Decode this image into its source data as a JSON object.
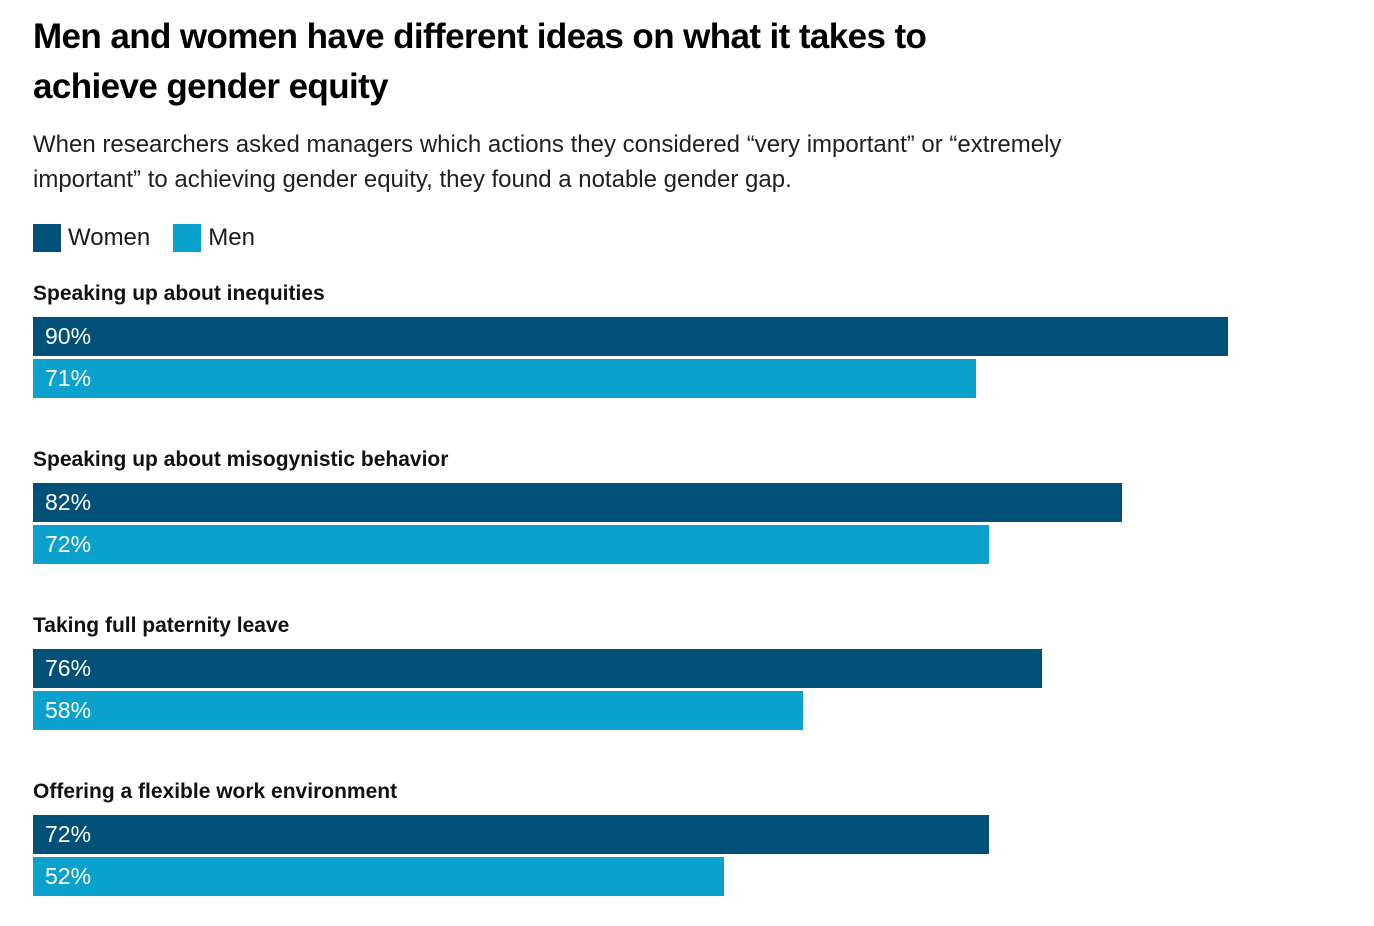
{
  "title_lines": [
    "Men and women have different ideas on what it takes to",
    "achieve gender equity"
  ],
  "subtitle_lines": [
    "When researchers asked managers which actions they considered “very important” or “extremely",
    "important” to achieving gender equity, they found a notable gender gap."
  ],
  "legend": {
    "items": [
      {
        "label": "Women",
        "color": "#015077"
      },
      {
        "label": "Men",
        "color": "#0aa1cd"
      }
    ]
  },
  "chart_data": {
    "type": "bar",
    "orientation": "horizontal",
    "title": "Men and women have different ideas on what it takes to achieve gender equity",
    "subtitle": "When researchers asked managers which actions they considered “very important” or “extremely important” to achieving gender equity, they found a notable gender gap.",
    "categories": [
      "Speaking up about inequities",
      "Speaking up about misogynistic behavior",
      "Taking full paternity leave",
      "Offering a flexible work environment"
    ],
    "series": [
      {
        "name": "Women",
        "color": "#015077",
        "values": [
          90,
          82,
          76,
          72
        ]
      },
      {
        "name": "Men",
        "color": "#0aa1cd",
        "values": [
          71,
          72,
          58,
          52
        ]
      }
    ],
    "value_suffix": "%",
    "value_labels": "inside-left",
    "xlim": [
      0,
      100
    ],
    "grid": false,
    "axes_shown": false,
    "legend_position": "top-left",
    "background": "#ffffff",
    "text_color_on_bars": "#ffffff"
  }
}
